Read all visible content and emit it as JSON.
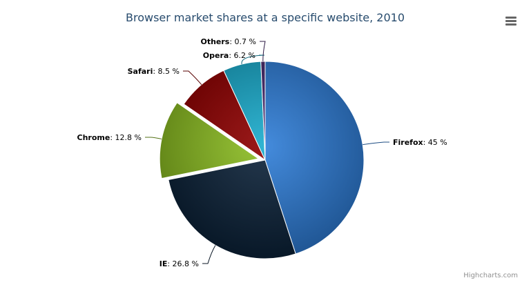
{
  "chart_data": {
    "type": "pie",
    "title": "Browser market shares at a specific website, 2010",
    "unit": "%",
    "slices": [
      {
        "name": "Firefox",
        "value": 45.0,
        "color": "#2f7ed8"
      },
      {
        "name": "IE",
        "value": 26.8,
        "color": "#0d233a"
      },
      {
        "name": "Chrome",
        "value": 12.8,
        "color": "#8bbc21",
        "sliced": true
      },
      {
        "name": "Safari",
        "value": 8.5,
        "color": "#910000"
      },
      {
        "name": "Opera",
        "value": 6.2,
        "color": "#1aadce"
      },
      {
        "name": "Others",
        "value": 0.7,
        "color": "#492970"
      }
    ]
  },
  "menu_icon": "hamburger-menu-icon",
  "credits": "Highcharts.com"
}
